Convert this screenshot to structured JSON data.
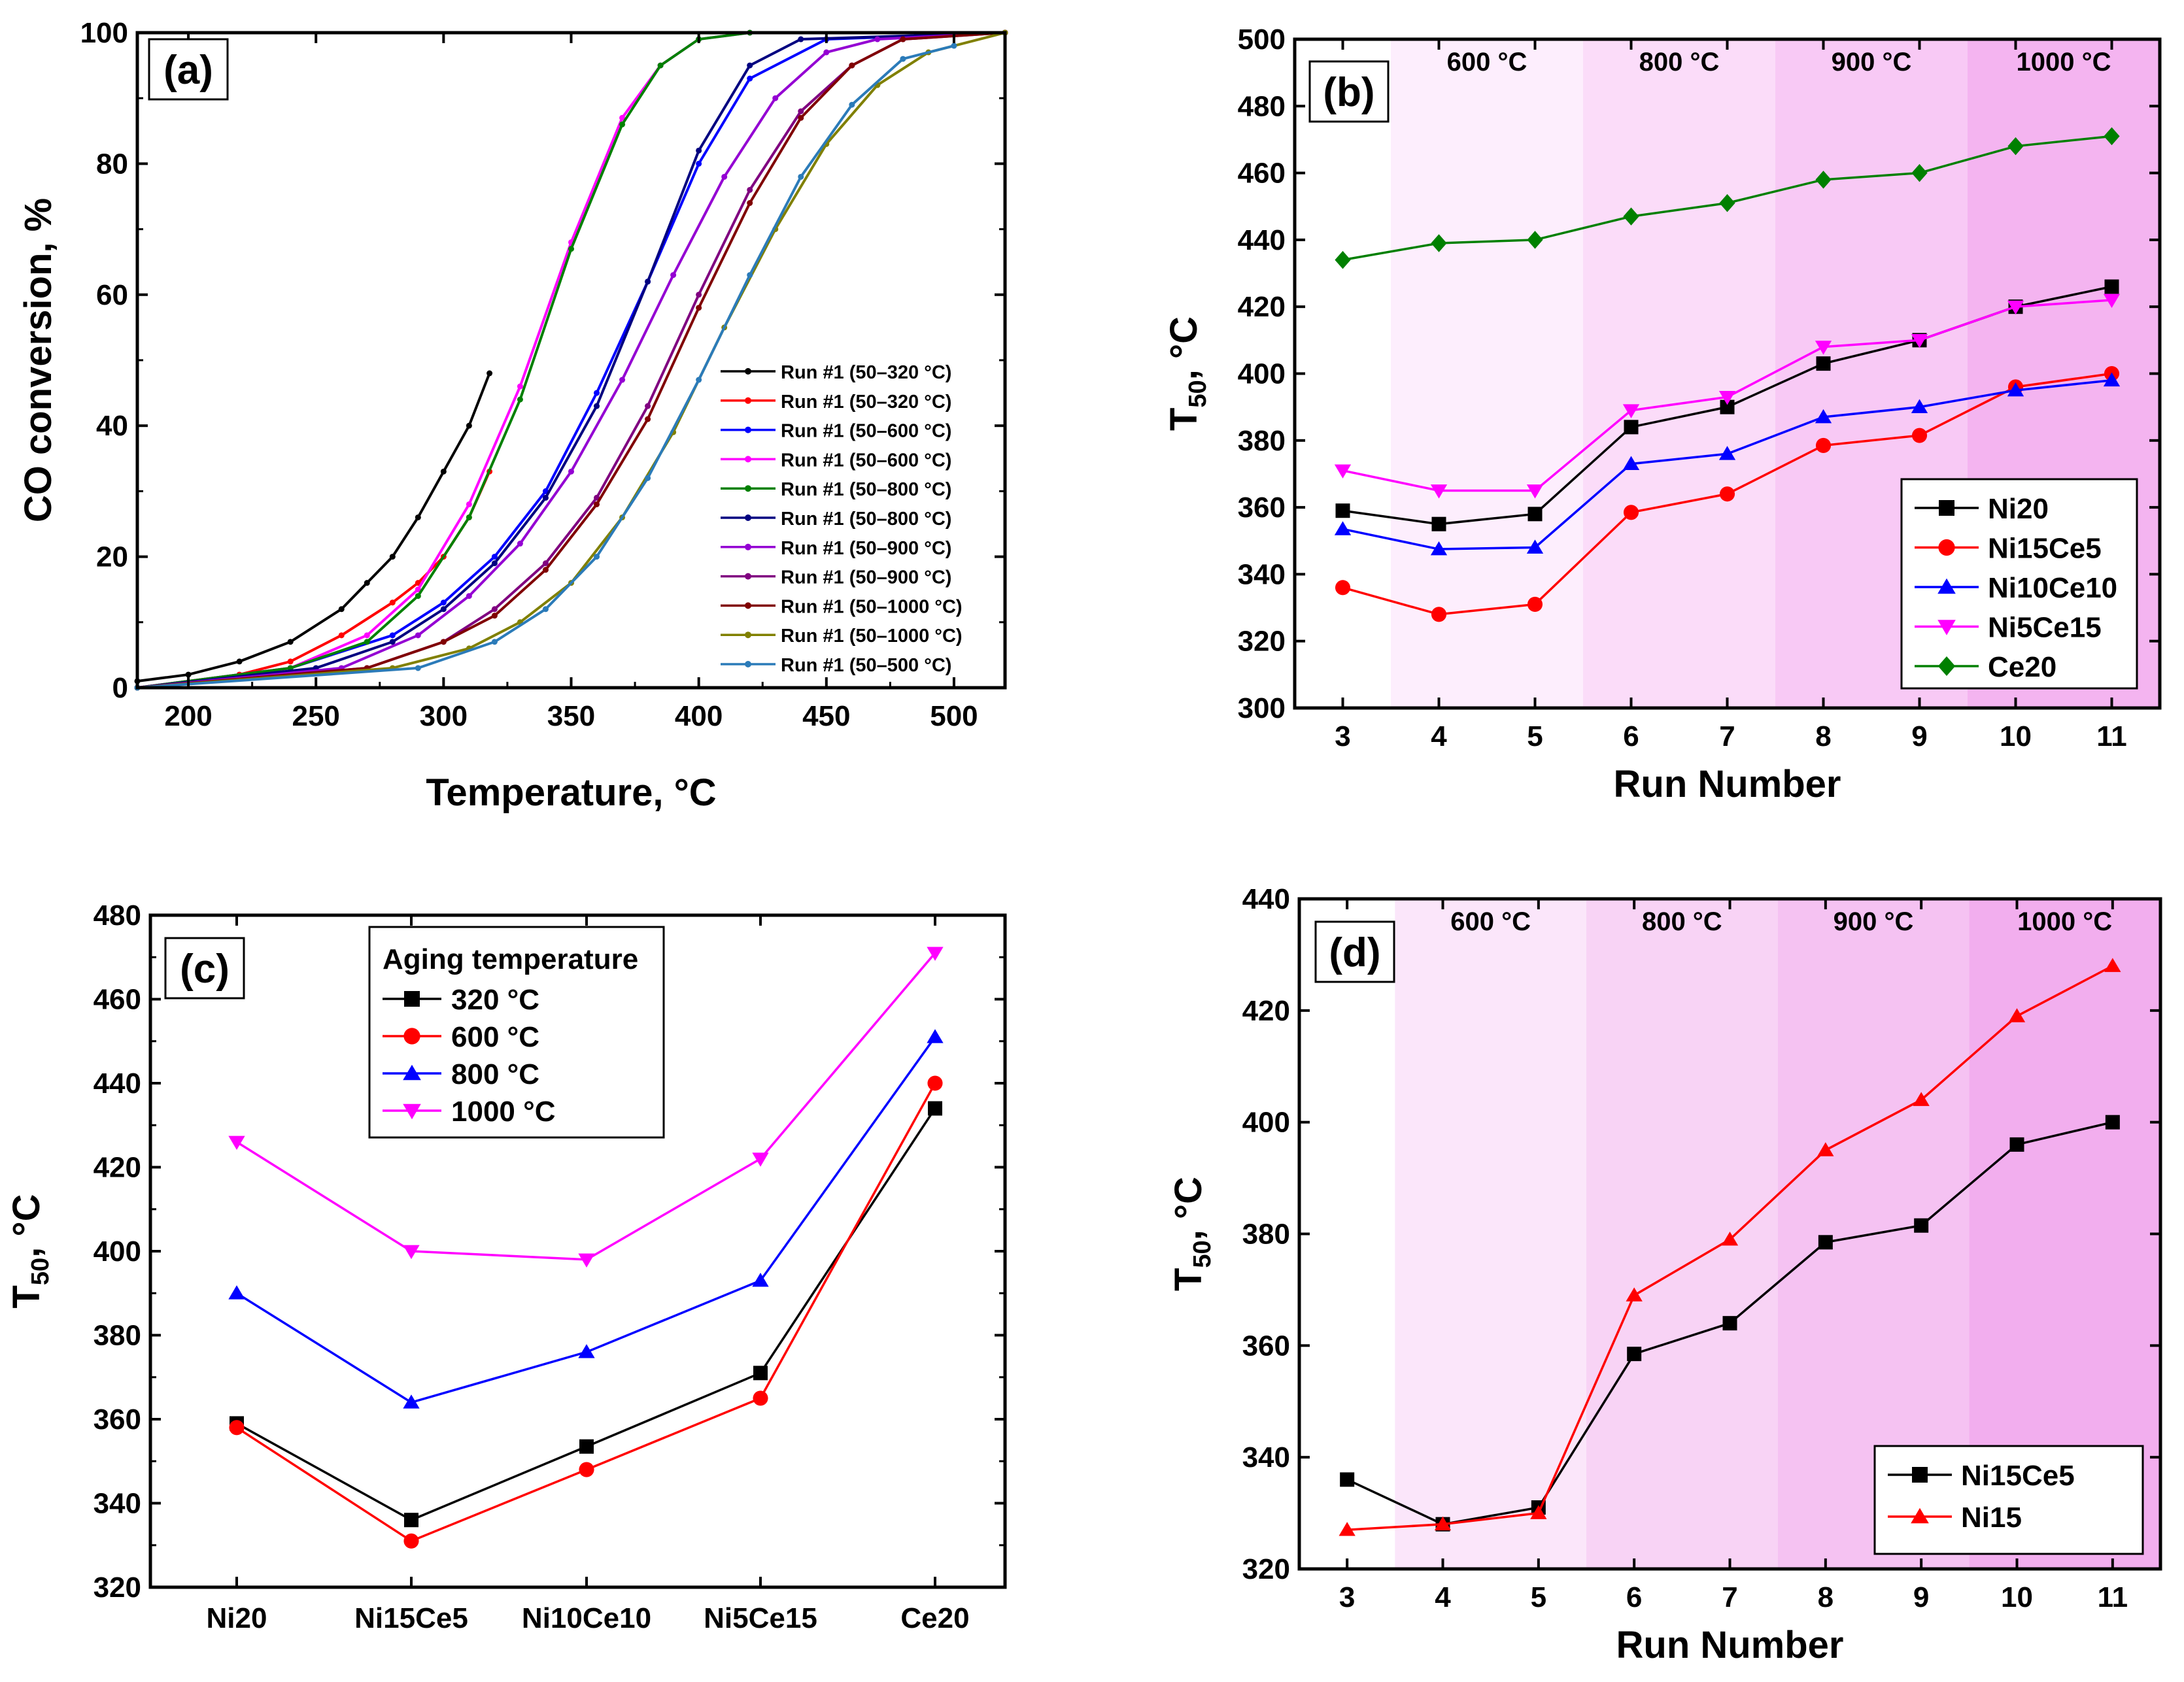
{
  "chart_data": [
    {
      "panel": "(a)",
      "type": "line",
      "xlabel": "Temperature, °C",
      "ylabel": "CO conversion, %",
      "xlim": [
        180,
        520
      ],
      "ylim": [
        0,
        100
      ],
      "xticks": [
        200,
        250,
        300,
        350,
        400,
        450,
        500
      ],
      "yticks": [
        0,
        20,
        40,
        60,
        80,
        100
      ],
      "legend_position": "right",
      "series": [
        {
          "name": "Run #1 (50–320 °C)",
          "color": "#000000",
          "x": [
            180,
            200,
            220,
            240,
            260,
            270,
            280,
            290,
            300,
            310,
            318
          ],
          "y": [
            1,
            2,
            4,
            7,
            12,
            16,
            20,
            26,
            33,
            40,
            48
          ]
        },
        {
          "name": "Run #1 (50–320 °C)",
          "color": "#ff0000",
          "x": [
            180,
            220,
            240,
            260,
            280,
            290,
            300,
            310,
            318
          ],
          "y": [
            0,
            2,
            4,
            8,
            13,
            16,
            20,
            26,
            33
          ]
        },
        {
          "name": "Run #1 (50–600 °C)",
          "color": "#0000ff",
          "x": [
            180,
            240,
            280,
            300,
            320,
            340,
            360,
            380,
            400,
            420,
            450,
            520
          ],
          "y": [
            0,
            3,
            8,
            13,
            20,
            30,
            45,
            62,
            80,
            93,
            99,
            100
          ]
        },
        {
          "name": "Run #1 (50–600 °C)",
          "color": "#ff00ff",
          "x": [
            180,
            240,
            270,
            290,
            310,
            330,
            350,
            370,
            385,
            400,
            420,
            520
          ],
          "y": [
            0,
            3,
            8,
            15,
            28,
            46,
            68,
            87,
            95,
            99,
            100,
            100
          ]
        },
        {
          "name": "Run #1 (50–800 °C)",
          "color": "#008000",
          "x": [
            180,
            240,
            270,
            290,
            310,
            330,
            350,
            370,
            385,
            400,
            420,
            520
          ],
          "y": [
            0,
            3,
            7,
            14,
            26,
            44,
            67,
            86,
            95,
            99,
            100,
            100
          ]
        },
        {
          "name": "Run #1 (50–800 °C)",
          "color": "#000080",
          "x": [
            180,
            250,
            280,
            300,
            320,
            340,
            360,
            380,
            400,
            420,
            440,
            520
          ],
          "y": [
            0,
            3,
            7,
            12,
            19,
            29,
            43,
            62,
            82,
            95,
            99,
            100
          ]
        },
        {
          "name": "Run #1 (50–900 °C)",
          "color": "#9400d3",
          "x": [
            180,
            260,
            290,
            310,
            330,
            350,
            370,
            390,
            410,
            430,
            450,
            470,
            520
          ],
          "y": [
            0,
            3,
            8,
            14,
            22,
            33,
            47,
            63,
            78,
            90,
            97,
            99,
            100
          ]
        },
        {
          "name": "Run #1 (50–900 °C)",
          "color": "#800080",
          "x": [
            180,
            270,
            300,
            320,
            340,
            360,
            380,
            400,
            420,
            440,
            460,
            480,
            520
          ],
          "y": [
            0,
            3,
            7,
            12,
            19,
            29,
            43,
            60,
            76,
            88,
            95,
            99,
            100
          ]
        },
        {
          "name": "Run #1 (50–1000 °C)",
          "color": "#800000",
          "x": [
            180,
            270,
            300,
            320,
            340,
            360,
            380,
            400,
            420,
            440,
            460,
            480,
            520
          ],
          "y": [
            0,
            3,
            7,
            11,
            18,
            28,
            41,
            58,
            74,
            87,
            95,
            99,
            100
          ]
        },
        {
          "name": "Run #1 (50–1000 °C)",
          "color": "#808000",
          "x": [
            180,
            280,
            310,
            330,
            350,
            370,
            390,
            410,
            430,
            450,
            470,
            490,
            520
          ],
          "y": [
            0,
            3,
            6,
            10,
            16,
            26,
            39,
            55,
            70,
            83,
            92,
            97,
            100
          ]
        },
        {
          "name": "Run #1 (50–500 °C)",
          "color": "#2b7bb9",
          "x": [
            180,
            290,
            320,
            340,
            360,
            380,
            400,
            420,
            440,
            460,
            480,
            500
          ],
          "y": [
            0,
            3,
            7,
            12,
            20,
            32,
            47,
            63,
            78,
            89,
            96,
            98
          ]
        }
      ]
    },
    {
      "panel": "(b)",
      "type": "line",
      "xlabel": "Run Number",
      "ylabel_main": "T",
      "ylabel_sub": "50",
      "ylabel_tail": ", °C",
      "xlim": [
        2.5,
        11.5
      ],
      "ylim": [
        300,
        500
      ],
      "xticks": [
        3,
        4,
        5,
        6,
        7,
        8,
        9,
        10,
        11
      ],
      "yticks": [
        300,
        320,
        340,
        360,
        380,
        400,
        420,
        440,
        460,
        480,
        500
      ],
      "legend_position": "bottom-right",
      "bands": [
        {
          "label": "600 °C",
          "from": 3.5,
          "to": 5.5,
          "color": "#fdeefd"
        },
        {
          "label": "800 °C",
          "from": 5.5,
          "to": 7.5,
          "color": "#fbdcf9"
        },
        {
          "label": "900 °C",
          "from": 7.5,
          "to": 9.5,
          "color": "#f8c9f5"
        },
        {
          "label": "1000 °C",
          "from": 9.5,
          "to": 11.5,
          "color": "#f4b4f0"
        }
      ],
      "x": [
        3,
        4,
        5,
        6,
        7,
        8,
        9,
        10,
        11
      ],
      "series": [
        {
          "name": "Ni20",
          "color": "#000000",
          "marker": "square",
          "values": [
            359,
            355,
            358,
            384,
            390,
            403,
            410,
            420,
            426
          ]
        },
        {
          "name": "Ni15Ce5",
          "color": "#ff0000",
          "marker": "circle",
          "values": [
            336,
            328,
            331,
            358.5,
            364,
            378.5,
            381.5,
            396,
            400
          ]
        },
        {
          "name": "Ni10Ce10",
          "color": "#0000ff",
          "marker": "triangle-up",
          "values": [
            353.5,
            347.5,
            348,
            373,
            376,
            387,
            390,
            395,
            398
          ]
        },
        {
          "name": "Ni5Ce15",
          "color": "#ff00ff",
          "marker": "triangle-down",
          "values": [
            371,
            365,
            365,
            389,
            393,
            408,
            410,
            420,
            422
          ]
        },
        {
          "name": "Ce20",
          "color": "#008000",
          "marker": "diamond",
          "values": [
            434,
            439,
            440,
            447,
            451,
            458,
            460,
            468,
            471
          ]
        }
      ]
    },
    {
      "panel": "(c)",
      "type": "line",
      "xlabel": "",
      "ylabel_main": "T",
      "ylabel_sub": "50",
      "ylabel_tail": ", °C",
      "ylim": [
        320,
        480
      ],
      "yticks": [
        320,
        340,
        360,
        380,
        400,
        420,
        440,
        460,
        480
      ],
      "categories": [
        "Ni20",
        "Ni15Ce5",
        "Ni10Ce10",
        "Ni5Ce15",
        "Ce20"
      ],
      "legend_title": "Aging temperature",
      "legend_position": "top-center",
      "series": [
        {
          "name": "320 °C",
          "color": "#000000",
          "marker": "square",
          "values": [
            359,
            336,
            353.5,
            371,
            434
          ]
        },
        {
          "name": "600 °C",
          "color": "#ff0000",
          "marker": "circle",
          "values": [
            358,
            331,
            348,
            365,
            440
          ]
        },
        {
          "name": "800 °C",
          "color": "#0000ff",
          "marker": "triangle-up",
          "values": [
            390,
            364,
            376,
            393,
            451
          ]
        },
        {
          "name": "1000 °C",
          "color": "#ff00ff",
          "marker": "triangle-down",
          "values": [
            426,
            400,
            398,
            422,
            471
          ]
        }
      ]
    },
    {
      "panel": "(d)",
      "type": "line",
      "xlabel": "Run Number",
      "ylabel_main": "T",
      "ylabel_sub": "50",
      "ylabel_tail": ", °C",
      "xlim": [
        2.5,
        11.5
      ],
      "ylim": [
        320,
        440
      ],
      "xticks": [
        3,
        4,
        5,
        6,
        7,
        8,
        9,
        10,
        11
      ],
      "yticks": [
        320,
        340,
        360,
        380,
        400,
        420,
        440
      ],
      "legend_position": "bottom-right",
      "bands": [
        {
          "label": "600 °C",
          "from": 3.5,
          "to": 5.5,
          "color": "#fbe6fa"
        },
        {
          "label": "800 °C",
          "from": 5.5,
          "to": 7.5,
          "color": "#f8d3f5"
        },
        {
          "label": "900 °C",
          "from": 7.5,
          "to": 9.5,
          "color": "#f5c2f2"
        },
        {
          "label": "1000 °C",
          "from": 9.5,
          "to": 11.5,
          "color": "#f2aeee"
        }
      ],
      "x": [
        3,
        4,
        5,
        6,
        7,
        8,
        9,
        10,
        11
      ],
      "series": [
        {
          "name": "Ni15Ce5",
          "color": "#000000",
          "marker": "square",
          "values": [
            336,
            328,
            331,
            358.5,
            364,
            378.5,
            381.5,
            396,
            400
          ]
        },
        {
          "name": "Ni15",
          "color": "#ff0000",
          "marker": "triangle-up",
          "values": [
            327,
            328,
            330,
            369,
            379,
            395,
            404,
            419,
            428
          ]
        }
      ]
    }
  ]
}
